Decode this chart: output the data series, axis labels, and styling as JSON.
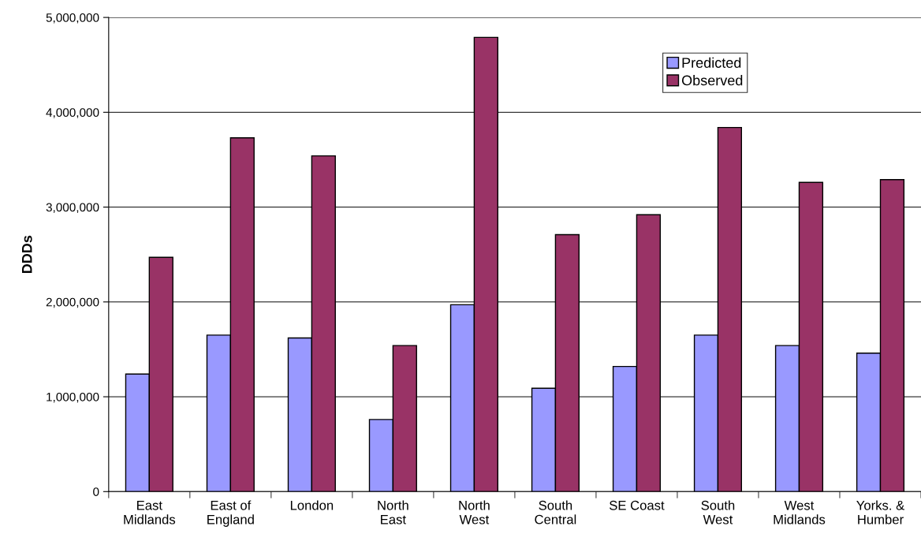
{
  "chart_data": {
    "type": "bar",
    "ylabel": "DDDs",
    "categories": [
      "East\nMidlands",
      "East of\nEngland",
      "London",
      "North\nEast",
      "North\nWest",
      "South\nCentral",
      "SE Coast",
      "South\nWest",
      "West\nMidlands",
      "Yorks. &\nHumber"
    ],
    "series": [
      {
        "name": "Predicted",
        "color": "#9999ff",
        "values": [
          1240000,
          1650000,
          1620000,
          760000,
          1970000,
          1090000,
          1320000,
          1650000,
          1540000,
          1460000
        ]
      },
      {
        "name": "Observed",
        "color": "#993366",
        "values": [
          2470000,
          3730000,
          3540000,
          1540000,
          4790000,
          2710000,
          2920000,
          3840000,
          3260000,
          3290000
        ]
      }
    ],
    "ylim": [
      0,
      5000000
    ],
    "yticks": [
      {
        "value": 0,
        "label": "0"
      },
      {
        "value": 1000000,
        "label": "1,000,000"
      },
      {
        "value": 2000000,
        "label": "2,000,000"
      },
      {
        "value": 3000000,
        "label": "3,000,000"
      },
      {
        "value": 4000000,
        "label": "4,000,000"
      },
      {
        "value": 5000000,
        "label": "5,000,000"
      }
    ],
    "grid": "y",
    "legend": "top right"
  }
}
